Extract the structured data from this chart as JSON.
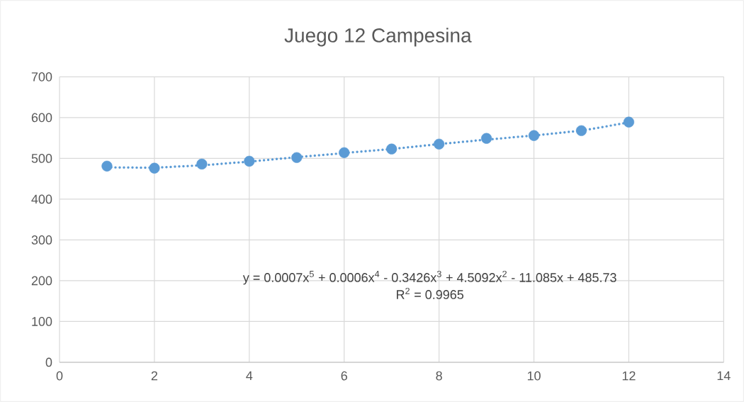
{
  "chart_data": {
    "type": "scatter",
    "title": "Juego 12 Campesina",
    "x": [
      1,
      2,
      3,
      4,
      5,
      6,
      7,
      8,
      9,
      10,
      11,
      12
    ],
    "series": [
      {
        "color": "#5b9bd5",
        "marker": "circle",
        "values": [
          481,
          476,
          486,
          493,
          502,
          514,
          523,
          535,
          549,
          556,
          568,
          589
        ]
      },
      {
        "type": "line",
        "color": "#5b9bd5",
        "line_style": "dotted",
        "marker": "none",
        "x": [
          1,
          2,
          3,
          4,
          5,
          6,
          7,
          8,
          9,
          10,
          11,
          12
        ],
        "values": [
          478,
          477,
          483,
          492,
          503,
          513,
          523,
          535,
          546,
          556,
          568,
          588
        ]
      }
    ],
    "xlim": [
      0,
      14
    ],
    "xticks": [
      0,
      2,
      4,
      6,
      8,
      10,
      12,
      14
    ],
    "ylim": [
      0,
      700
    ],
    "yticks": [
      0,
      100,
      200,
      300,
      400,
      500,
      600,
      700
    ],
    "grid": true,
    "annotations": [
      "y = 0.0007x$^{5}$ + 0.0006x$^{4}$ - 0.3426x$^{3}$ + 4.5092x$^{2}$ - 11.085x + 485.73",
      "R$^{2}$ = 0.9965"
    ]
  }
}
